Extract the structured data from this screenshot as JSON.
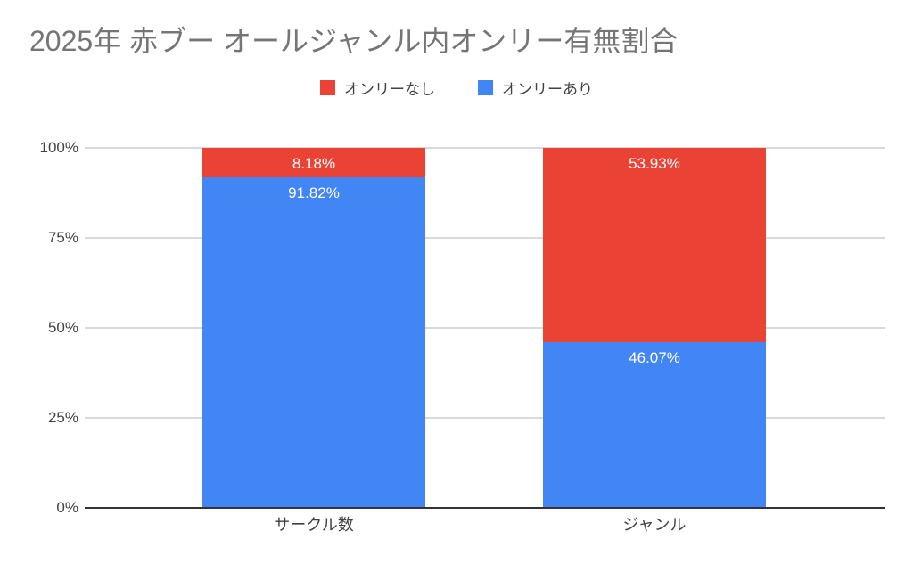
{
  "chart_data": {
    "type": "bar",
    "stacked": true,
    "percent_stacked": true,
    "title": "2025年 赤ブー オールジャンル内オンリー有無割合",
    "title_color": "#757575",
    "categories": [
      "サークル数",
      "ジャンル"
    ],
    "series": [
      {
        "name": "オンリーなし",
        "color": "#ea4335",
        "values": [
          8.18,
          53.93
        ],
        "labels": [
          "8.18%",
          "53.93%"
        ]
      },
      {
        "name": "オンリーあり",
        "color": "#4285f4",
        "values": [
          91.82,
          46.07
        ],
        "labels": [
          "91.82%",
          "46.07%"
        ]
      }
    ],
    "stack_order_bottom_to_top": [
      "オンリーあり",
      "オンリーなし"
    ],
    "yticks": [
      {
        "label": "0%",
        "value": 0
      },
      {
        "label": "25%",
        "value": 25
      },
      {
        "label": "50%",
        "value": 50
      },
      {
        "label": "75%",
        "value": 75
      },
      {
        "label": "100%",
        "value": 100
      }
    ],
    "ylim": [
      0,
      100
    ],
    "grid": true,
    "legend_position": "top",
    "xlabel": "",
    "ylabel": "",
    "colors": {
      "gridline": "#d9d9d9",
      "axis_line": "#333333",
      "tick_text": "#424242",
      "category_text": "#424242",
      "bar_label_text": "#ffffff",
      "background": "#ffffff"
    }
  }
}
